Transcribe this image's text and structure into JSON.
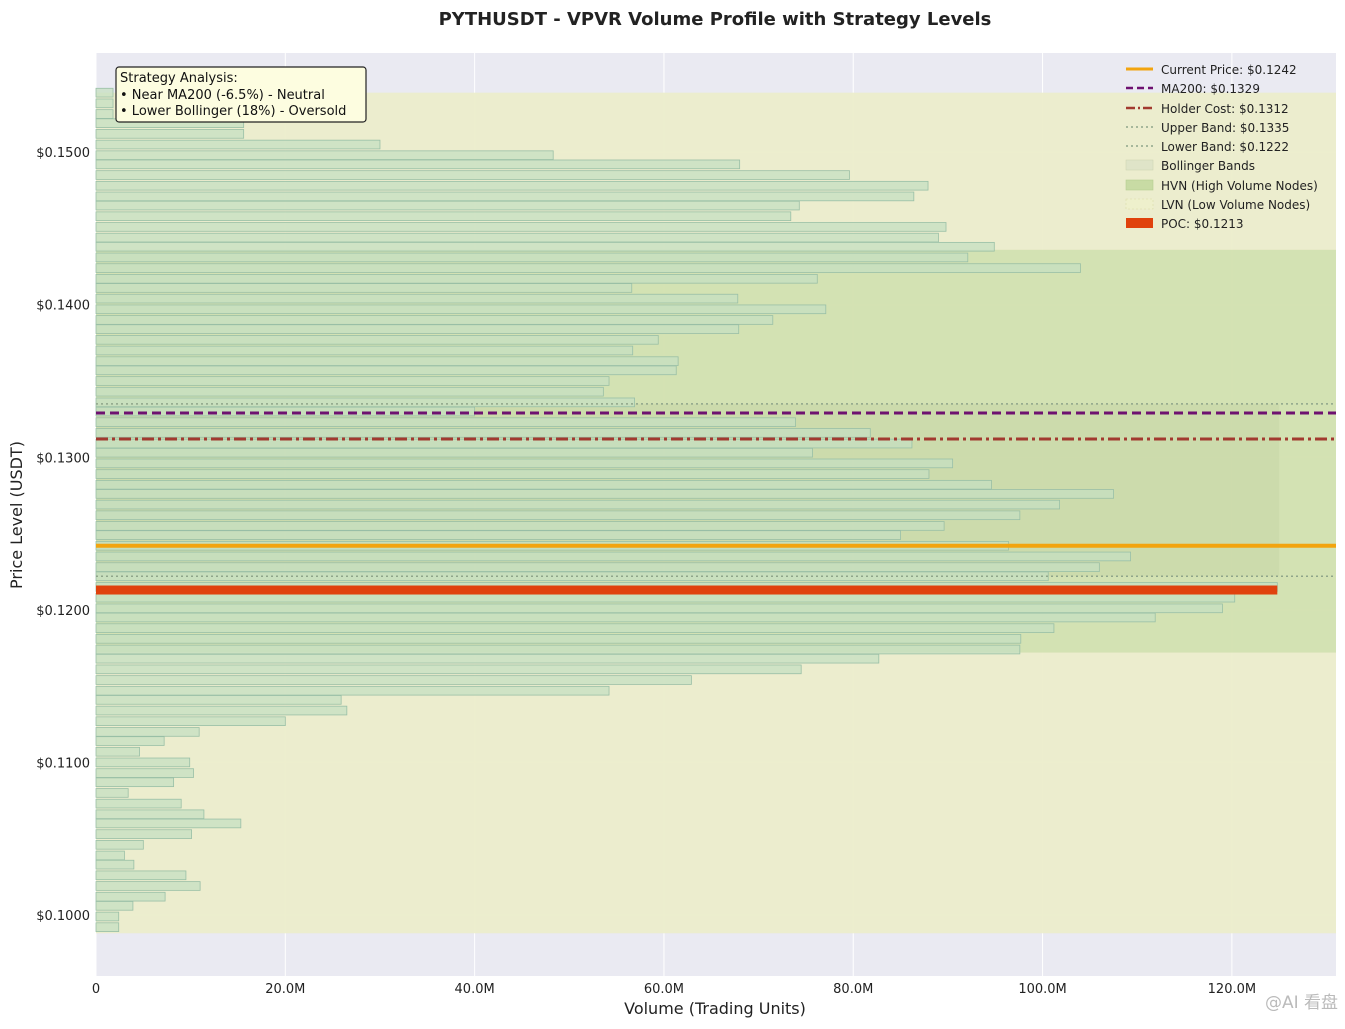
{
  "chart_data": {
    "type": "bar",
    "orientation": "horizontal",
    "title": "PYTHUSDT - VPVR Volume Profile with Strategy Levels",
    "xlabel": "Volume (Trading Units)",
    "ylabel": "Price Level (USDT)",
    "xlim": [
      0,
      131000000
    ],
    "ylim": [
      0.096,
      0.1565
    ],
    "x_ticks": [
      0,
      20000000,
      40000000,
      60000000,
      80000000,
      100000000,
      120000000
    ],
    "x_tick_labels": [
      "0",
      "20.0M",
      "40.0M",
      "60.0M",
      "80.0M",
      "100.0M",
      "120.0M"
    ],
    "y_ticks": [
      0.1,
      0.11,
      0.12,
      0.13,
      0.14,
      0.15
    ],
    "y_tick_labels": [
      "$0.1000",
      "$0.1100",
      "$0.1200",
      "$0.1300",
      "$0.1400",
      "$0.1500"
    ],
    "grid": true,
    "legend_position": "top-right",
    "bin_prices": [
      0.1539,
      0.1532,
      0.1525,
      0.1519,
      0.1512,
      0.1505,
      0.1498,
      0.1492,
      0.1485,
      0.1478,
      0.1471,
      0.1465,
      0.1458,
      0.1451,
      0.1444,
      0.1438,
      0.1431,
      0.1424,
      0.1417,
      0.1411,
      0.1404,
      0.1397,
      0.139,
      0.1384,
      0.1377,
      0.137,
      0.1363,
      0.1357,
      0.135,
      0.1343,
      0.1336,
      0.133,
      0.1323,
      0.1316,
      0.1309,
      0.1303,
      0.1296,
      0.1289,
      0.1282,
      0.1276,
      0.1269,
      0.1262,
      0.1255,
      0.1249,
      0.1242,
      0.1235,
      0.1228,
      0.1222,
      0.1215,
      0.1208,
      0.1201,
      0.1195,
      0.1188,
      0.1181,
      0.1174,
      0.1168,
      0.1161,
      0.1154,
      0.1147,
      0.1141,
      0.1134,
      0.1127,
      0.112,
      0.1114,
      0.1107,
      0.11,
      0.1093,
      0.1087,
      0.108,
      0.1073,
      0.1066,
      0.106,
      0.1053,
      0.1046,
      0.1039,
      0.1033,
      0.1026,
      0.1019,
      0.1012,
      0.1006,
      0.0999,
      0.0992
    ],
    "volumes": [
      1800000,
      1800000,
      1800000,
      15600000,
      15600000,
      30000000,
      48300000,
      68000000,
      79600000,
      87900000,
      86400000,
      74300000,
      73400000,
      89800000,
      89000000,
      94900000,
      92100000,
      104000000,
      76200000,
      56600000,
      67800000,
      77100000,
      71500000,
      67900000,
      59400000,
      56700000,
      61500000,
      61300000,
      54200000,
      53600000,
      56900000,
      40000000,
      73900000,
      81800000,
      86200000,
      75700000,
      90500000,
      88000000,
      94600000,
      107500000,
      101800000,
      97600000,
      89600000,
      85000000,
      96400000,
      109300000,
      106000000,
      100600000,
      124800000,
      120300000,
      119000000,
      111900000,
      101200000,
      97700000,
      97600000,
      82700000,
      74500000,
      62900000,
      54200000,
      25900000,
      26500000,
      20000000,
      10900000,
      7200000,
      4600000,
      9900000,
      10300000,
      8200000,
      3400000,
      9000000,
      11400000,
      15300000,
      10100000,
      5000000,
      3000000,
      4000000,
      9500000,
      11000000,
      7300000,
      3900000,
      2400000,
      2400000
    ],
    "poc": {
      "price": 0.1213,
      "volume": 124800000
    },
    "current_price": 0.1242,
    "ma200": 0.1329,
    "holder_cost": 0.1312,
    "upper_band": 0.1335,
    "lower_band": 0.1222,
    "bollinger_x_end": 125000000,
    "hvn_range": [
      0.1172,
      0.1436
    ],
    "lvn_range": [
      0.0988,
      0.1539
    ],
    "legend": [
      {
        "key": "current",
        "label": "Current Price: $0.1242"
      },
      {
        "key": "ma200",
        "label": "MA200: $0.1329"
      },
      {
        "key": "holder",
        "label": "Holder Cost: $0.1312"
      },
      {
        "key": "upper",
        "label": "Upper Band: $0.1335"
      },
      {
        "key": "lower",
        "label": "Lower Band: $0.1222"
      },
      {
        "key": "bands",
        "label": "Bollinger Bands"
      },
      {
        "key": "hvn",
        "label": "HVN (High Volume Nodes)"
      },
      {
        "key": "lvn",
        "label": "LVN (Low Volume Nodes)"
      },
      {
        "key": "poc",
        "label": "POC: $0.1213"
      }
    ],
    "annotation": {
      "lines": [
        "Strategy Analysis:",
        "• Near MA200 (-6.5%) - Neutral",
        "• Lower Bollinger (18%) - Oversold"
      ]
    },
    "colors": {
      "plot_bg": "#eaeaf2",
      "lvn": "#ecedcb",
      "hvn": "#d0e0b0",
      "bollinger": "#c7d6a5",
      "bar_fill": "#c5dfc2",
      "bar_stroke": "#99bfa6",
      "current": "#f2a40f",
      "ma200": "#6e1170",
      "holder": "#a23a2f",
      "band": "#8fa58a",
      "poc": "#e0420d"
    }
  },
  "watermark": "@AI 看盘"
}
